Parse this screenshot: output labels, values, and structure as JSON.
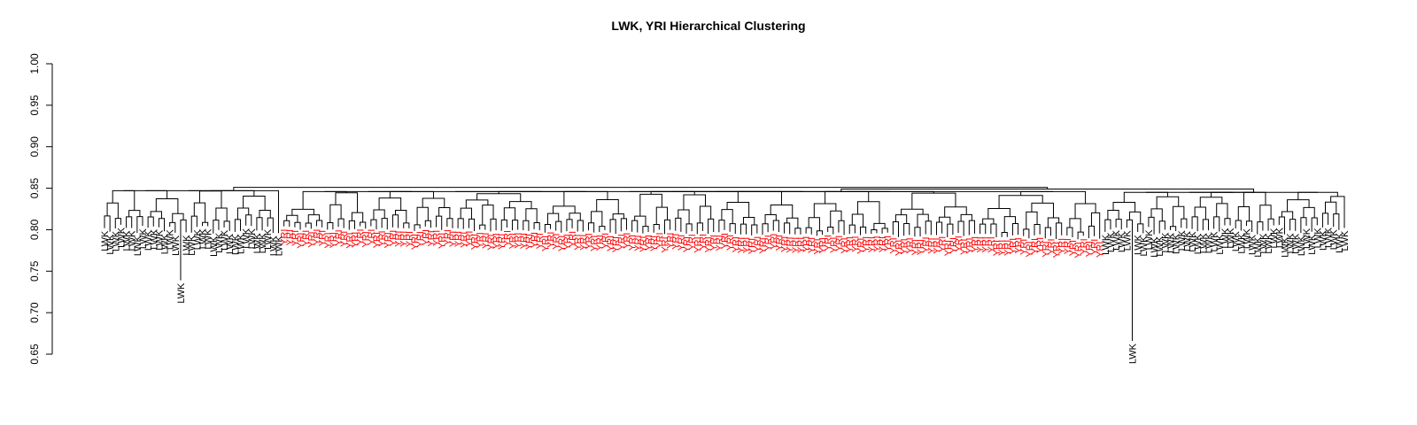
{
  "chart_data": {
    "type": "dendrogram",
    "title": "LWK, YRI Hierarchical Clustering",
    "xlabel": "",
    "ylabel": "",
    "ylim": [
      0.65,
      1.0
    ],
    "y_ticks": [
      "0.65",
      "0.70",
      "0.75",
      "0.80",
      "0.85",
      "0.90",
      "0.95",
      "1.00"
    ],
    "groups": [
      {
        "label": "LWK",
        "color": "#000000"
      },
      {
        "label": "YRI",
        "color": "#ff0000"
      }
    ],
    "leaf_sequence": [
      {
        "label": "LWK",
        "count": 33
      },
      {
        "label": "YRI",
        "count": 151
      },
      {
        "label": "LWK",
        "count": 45
      }
    ],
    "outlier_leaves": [
      {
        "label": "LWK",
        "height": 0.739
      },
      {
        "label": "LWK",
        "height": 0.666
      }
    ],
    "root_height": 0.851,
    "typical_leaf_height": 0.8
  }
}
